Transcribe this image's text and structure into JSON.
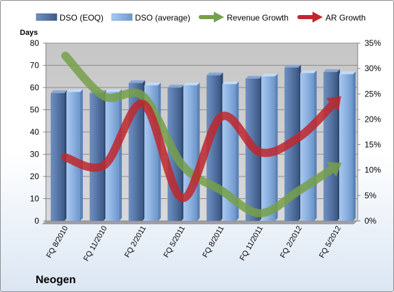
{
  "company": "Neogen",
  "chart_data": {
    "type": "bar",
    "categories": [
      "FQ 8/2010",
      "FQ 11/2010",
      "FQ 2/2011",
      "FQ 5/2011",
      "FQ 8/2011",
      "FQ 11/2011",
      "FQ 2/2012",
      "FQ 5/2012"
    ],
    "series": [
      {
        "name": "DSO (EOQ)",
        "type": "bar",
        "axis": "left",
        "color": "#4f6f9f",
        "values": [
          57.5,
          57.5,
          62,
          60,
          65.5,
          64,
          69,
          67
        ]
      },
      {
        "name": "DSO (average)",
        "type": "bar",
        "axis": "left",
        "color": "#8fb4e3",
        "values": [
          58,
          58,
          61,
          61,
          61.5,
          65,
          66.5,
          66
        ]
      },
      {
        "name": "Revenue Growth",
        "type": "line",
        "axis": "right",
        "color": "#77a04a",
        "values": [
          32.5,
          24.5,
          24.5,
          11,
          6,
          1.5,
          6,
          11
        ]
      },
      {
        "name": "AR Growth",
        "type": "line",
        "axis": "right",
        "color": "#c0272d",
        "values": [
          12.5,
          11,
          23,
          4.5,
          20.5,
          13.5,
          16.5,
          24
        ]
      }
    ],
    "ylabel": "Days",
    "ylim": [
      0,
      80
    ],
    "yticks": [
      "0",
      "10",
      "20",
      "30",
      "40",
      "50",
      "60",
      "70",
      "80"
    ],
    "y2lim": [
      0,
      35
    ],
    "y2ticks": [
      "0%",
      "5%",
      "10%",
      "15%",
      "20%",
      "25%",
      "30%",
      "35%"
    ],
    "grid": true,
    "legend": "top"
  }
}
